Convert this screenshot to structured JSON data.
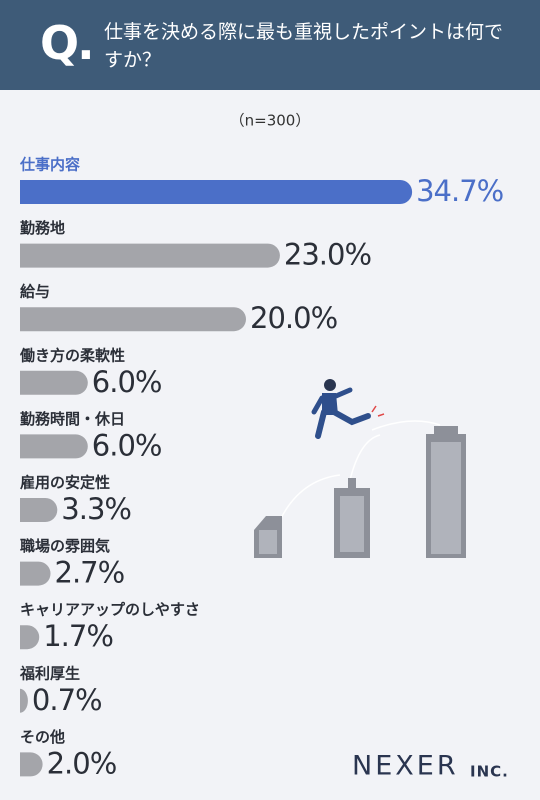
{
  "chart_data": {
    "type": "bar",
    "q_label": "Q.",
    "title": "仕事を決める際に最も重視したポイントは何ですか？",
    "subtitle": "（n=300）",
    "categories": [
      "仕事内容",
      "勤務地",
      "給与",
      "働き方の柔軟性",
      "勤務時間・休日",
      "雇用の安定性",
      "職場の雰囲気",
      "キャリアアップのしやすさ",
      "福利厚生",
      "その他"
    ],
    "values": [
      34.7,
      23.0,
      20.0,
      6.0,
      6.0,
      3.3,
      2.7,
      1.7,
      0.7,
      2.0
    ],
    "value_labels": [
      "34.7%",
      "23.0%",
      "20.0%",
      "6.0%",
      "6.0%",
      "3.3%",
      "2.7%",
      "1.7%",
      "0.7%",
      "2.0%"
    ],
    "colors": [
      "#4b6fc8",
      "#a4a5aa",
      "#a4a5aa",
      "#a4a5aa",
      "#a4a5aa",
      "#a4a5aa",
      "#a4a5aa",
      "#a4a5aa",
      "#a4a5aa",
      "#a4a5aa"
    ],
    "label_colors": [
      "#4b6fc8",
      "#2b2f38",
      "#2b2f38",
      "#2b2f38",
      "#2b2f38",
      "#2b2f38",
      "#2b2f38",
      "#2b2f38",
      "#2b2f38",
      "#2b2f38"
    ],
    "logo": "NEXER",
    "logo_suffix": "INC."
  }
}
